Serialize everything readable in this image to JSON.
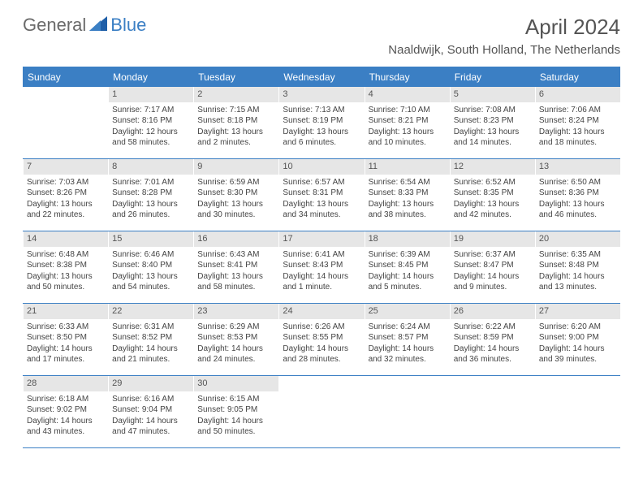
{
  "brand": {
    "part1": "General",
    "part2": "Blue"
  },
  "title": "April 2024",
  "location": "Naaldwijk, South Holland, The Netherlands",
  "colors": {
    "accent": "#3b7fc4",
    "daynum_bg": "#e6e6e6",
    "text": "#555555",
    "body_text": "#444444",
    "white": "#ffffff"
  },
  "day_headers": [
    "Sunday",
    "Monday",
    "Tuesday",
    "Wednesday",
    "Thursday",
    "Friday",
    "Saturday"
  ],
  "weeks": [
    [
      {
        "n": "",
        "sr": "",
        "ss": "",
        "dl": ""
      },
      {
        "n": "1",
        "sr": "Sunrise: 7:17 AM",
        "ss": "Sunset: 8:16 PM",
        "dl": "Daylight: 12 hours and 58 minutes."
      },
      {
        "n": "2",
        "sr": "Sunrise: 7:15 AM",
        "ss": "Sunset: 8:18 PM",
        "dl": "Daylight: 13 hours and 2 minutes."
      },
      {
        "n": "3",
        "sr": "Sunrise: 7:13 AM",
        "ss": "Sunset: 8:19 PM",
        "dl": "Daylight: 13 hours and 6 minutes."
      },
      {
        "n": "4",
        "sr": "Sunrise: 7:10 AM",
        "ss": "Sunset: 8:21 PM",
        "dl": "Daylight: 13 hours and 10 minutes."
      },
      {
        "n": "5",
        "sr": "Sunrise: 7:08 AM",
        "ss": "Sunset: 8:23 PM",
        "dl": "Daylight: 13 hours and 14 minutes."
      },
      {
        "n": "6",
        "sr": "Sunrise: 7:06 AM",
        "ss": "Sunset: 8:24 PM",
        "dl": "Daylight: 13 hours and 18 minutes."
      }
    ],
    [
      {
        "n": "7",
        "sr": "Sunrise: 7:03 AM",
        "ss": "Sunset: 8:26 PM",
        "dl": "Daylight: 13 hours and 22 minutes."
      },
      {
        "n": "8",
        "sr": "Sunrise: 7:01 AM",
        "ss": "Sunset: 8:28 PM",
        "dl": "Daylight: 13 hours and 26 minutes."
      },
      {
        "n": "9",
        "sr": "Sunrise: 6:59 AM",
        "ss": "Sunset: 8:30 PM",
        "dl": "Daylight: 13 hours and 30 minutes."
      },
      {
        "n": "10",
        "sr": "Sunrise: 6:57 AM",
        "ss": "Sunset: 8:31 PM",
        "dl": "Daylight: 13 hours and 34 minutes."
      },
      {
        "n": "11",
        "sr": "Sunrise: 6:54 AM",
        "ss": "Sunset: 8:33 PM",
        "dl": "Daylight: 13 hours and 38 minutes."
      },
      {
        "n": "12",
        "sr": "Sunrise: 6:52 AM",
        "ss": "Sunset: 8:35 PM",
        "dl": "Daylight: 13 hours and 42 minutes."
      },
      {
        "n": "13",
        "sr": "Sunrise: 6:50 AM",
        "ss": "Sunset: 8:36 PM",
        "dl": "Daylight: 13 hours and 46 minutes."
      }
    ],
    [
      {
        "n": "14",
        "sr": "Sunrise: 6:48 AM",
        "ss": "Sunset: 8:38 PM",
        "dl": "Daylight: 13 hours and 50 minutes."
      },
      {
        "n": "15",
        "sr": "Sunrise: 6:46 AM",
        "ss": "Sunset: 8:40 PM",
        "dl": "Daylight: 13 hours and 54 minutes."
      },
      {
        "n": "16",
        "sr": "Sunrise: 6:43 AM",
        "ss": "Sunset: 8:41 PM",
        "dl": "Daylight: 13 hours and 58 minutes."
      },
      {
        "n": "17",
        "sr": "Sunrise: 6:41 AM",
        "ss": "Sunset: 8:43 PM",
        "dl": "Daylight: 14 hours and 1 minute."
      },
      {
        "n": "18",
        "sr": "Sunrise: 6:39 AM",
        "ss": "Sunset: 8:45 PM",
        "dl": "Daylight: 14 hours and 5 minutes."
      },
      {
        "n": "19",
        "sr": "Sunrise: 6:37 AM",
        "ss": "Sunset: 8:47 PM",
        "dl": "Daylight: 14 hours and 9 minutes."
      },
      {
        "n": "20",
        "sr": "Sunrise: 6:35 AM",
        "ss": "Sunset: 8:48 PM",
        "dl": "Daylight: 14 hours and 13 minutes."
      }
    ],
    [
      {
        "n": "21",
        "sr": "Sunrise: 6:33 AM",
        "ss": "Sunset: 8:50 PM",
        "dl": "Daylight: 14 hours and 17 minutes."
      },
      {
        "n": "22",
        "sr": "Sunrise: 6:31 AM",
        "ss": "Sunset: 8:52 PM",
        "dl": "Daylight: 14 hours and 21 minutes."
      },
      {
        "n": "23",
        "sr": "Sunrise: 6:29 AM",
        "ss": "Sunset: 8:53 PM",
        "dl": "Daylight: 14 hours and 24 minutes."
      },
      {
        "n": "24",
        "sr": "Sunrise: 6:26 AM",
        "ss": "Sunset: 8:55 PM",
        "dl": "Daylight: 14 hours and 28 minutes."
      },
      {
        "n": "25",
        "sr": "Sunrise: 6:24 AM",
        "ss": "Sunset: 8:57 PM",
        "dl": "Daylight: 14 hours and 32 minutes."
      },
      {
        "n": "26",
        "sr": "Sunrise: 6:22 AM",
        "ss": "Sunset: 8:59 PM",
        "dl": "Daylight: 14 hours and 36 minutes."
      },
      {
        "n": "27",
        "sr": "Sunrise: 6:20 AM",
        "ss": "Sunset: 9:00 PM",
        "dl": "Daylight: 14 hours and 39 minutes."
      }
    ],
    [
      {
        "n": "28",
        "sr": "Sunrise: 6:18 AM",
        "ss": "Sunset: 9:02 PM",
        "dl": "Daylight: 14 hours and 43 minutes."
      },
      {
        "n": "29",
        "sr": "Sunrise: 6:16 AM",
        "ss": "Sunset: 9:04 PM",
        "dl": "Daylight: 14 hours and 47 minutes."
      },
      {
        "n": "30",
        "sr": "Sunrise: 6:15 AM",
        "ss": "Sunset: 9:05 PM",
        "dl": "Daylight: 14 hours and 50 minutes."
      },
      {
        "n": "",
        "sr": "",
        "ss": "",
        "dl": ""
      },
      {
        "n": "",
        "sr": "",
        "ss": "",
        "dl": ""
      },
      {
        "n": "",
        "sr": "",
        "ss": "",
        "dl": ""
      },
      {
        "n": "",
        "sr": "",
        "ss": "",
        "dl": ""
      }
    ]
  ]
}
